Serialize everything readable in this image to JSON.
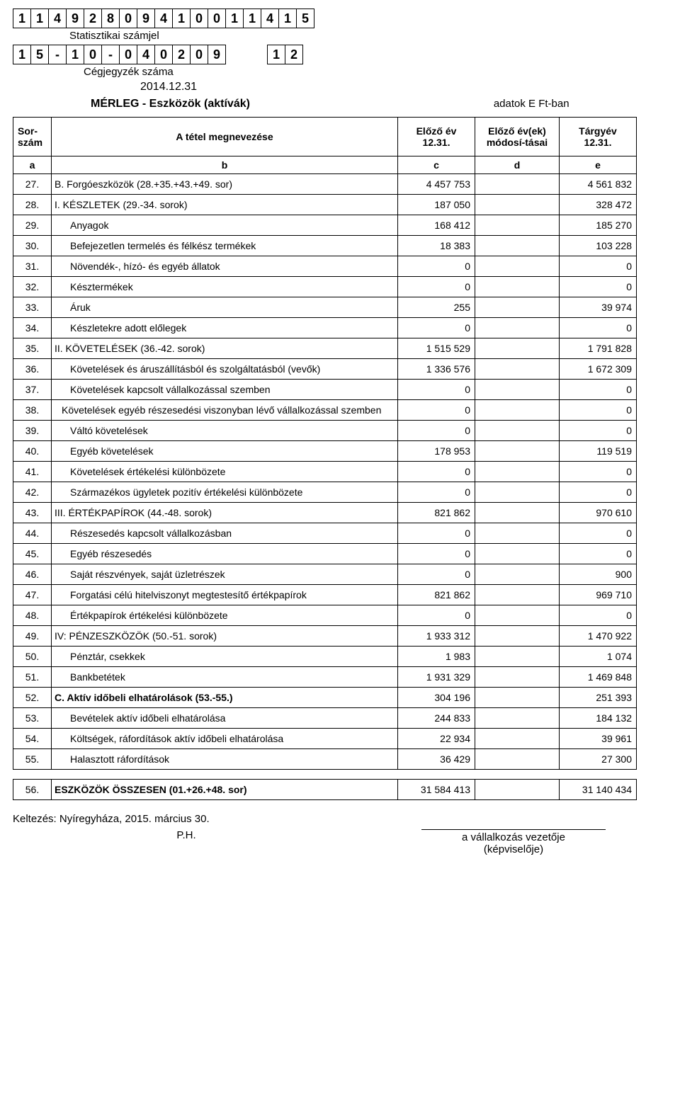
{
  "stat_code": [
    "1",
    "1",
    "4",
    "9",
    "2",
    "8",
    "0",
    "9",
    "4",
    "1",
    "0",
    "0",
    "1",
    "1",
    "4",
    "1",
    "5"
  ],
  "stat_label": "Statisztikai számjel",
  "reg_code_left": [
    "1",
    "5",
    "-",
    "1",
    "0",
    "-",
    "0",
    "4",
    "0",
    "2",
    "0",
    "9"
  ],
  "reg_code_right": [
    "1",
    "2"
  ],
  "reg_label": "Cégjegyzék száma",
  "report_date": "2014.12.31",
  "report_title": "MÉRLEG - Eszközök (aktívák)",
  "units_label": "adatok E Ft-ban",
  "head": {
    "sorszam": "Sor-\nszám",
    "megnev": "A tétel megnevezése",
    "elozo": "Előző év 12.31.",
    "modositas": "Előző év(ek) módosí-tásai",
    "targy": "Tárgyév 12.31."
  },
  "col_labels": {
    "a": "a",
    "b": "b",
    "c": "c",
    "d": "d",
    "e": "e"
  },
  "rows": [
    {
      "a": "27.",
      "b": "B.  Forgóeszközök (28.+35.+43.+49. sor)",
      "c": "4 457 753",
      "d": "",
      "e": "4 561 832",
      "indent": 0
    },
    {
      "a": "28.",
      "b": "I.  KÉSZLETEK (29.-34. sorok)",
      "c": "187 050",
      "d": "",
      "e": "328 472",
      "indent": 0
    },
    {
      "a": "29.",
      "b": "Anyagok",
      "c": "168 412",
      "d": "",
      "e": "185 270",
      "indent": 2
    },
    {
      "a": "30.",
      "b": "Befejezetlen termelés és félkész termékek",
      "c": "18 383",
      "d": "",
      "e": "103 228",
      "indent": 2
    },
    {
      "a": "31.",
      "b": "Növendék-, hízó- és egyéb állatok",
      "c": "0",
      "d": "",
      "e": "0",
      "indent": 2
    },
    {
      "a": "32.",
      "b": "Késztermékek",
      "c": "0",
      "d": "",
      "e": "0",
      "indent": 2
    },
    {
      "a": "33.",
      "b": "Áruk",
      "c": "255",
      "d": "",
      "e": "39 974",
      "indent": 2
    },
    {
      "a": "34.",
      "b": "Készletekre adott előlegek",
      "c": "0",
      "d": "",
      "e": "0",
      "indent": 2
    },
    {
      "a": "35.",
      "b": "II. KÖVETELÉSEK (36.-42. sorok)",
      "c": "1 515 529",
      "d": "",
      "e": "1 791 828",
      "indent": 0
    },
    {
      "a": "36.",
      "b": "Követelések és áruszállításból és szolgáltatásból (vevők)",
      "c": "1 336 576",
      "d": "",
      "e": "1 672 309",
      "indent": 2
    },
    {
      "a": "37.",
      "b": "Követelések kapcsolt vállalkozással szemben",
      "c": "0",
      "d": "",
      "e": "0",
      "indent": 2
    },
    {
      "a": "38.",
      "b": "Követelések egyéb részesedési viszonyban lévő vállalkozással szemben",
      "c": "0",
      "d": "",
      "e": "0",
      "indent": 3
    },
    {
      "a": "39.",
      "b": "Váltó követelések",
      "c": "0",
      "d": "",
      "e": "0",
      "indent": 2
    },
    {
      "a": "40.",
      "b": "Egyéb követelések",
      "c": "178 953",
      "d": "",
      "e": "119 519",
      "indent": 2
    },
    {
      "a": "41.",
      "b": "Követelések értékelési különbözete",
      "c": "0",
      "d": "",
      "e": "0",
      "indent": 2
    },
    {
      "a": "42.",
      "b": "Származékos ügyletek pozitív értékelési különbözete",
      "c": "0",
      "d": "",
      "e": "0",
      "indent": 2
    },
    {
      "a": "43.",
      "b": "III. ÉRTÉKPAPÍROK (44.-48. sorok)",
      "c": "821 862",
      "d": "",
      "e": "970 610",
      "indent": 0
    },
    {
      "a": "44.",
      "b": "Részesedés kapcsolt vállalkozásban",
      "c": "0",
      "d": "",
      "e": "0",
      "indent": 2
    },
    {
      "a": "45.",
      "b": "Egyéb részesedés",
      "c": "0",
      "d": "",
      "e": "0",
      "indent": 2
    },
    {
      "a": "46.",
      "b": "Saját részvények, saját üzletrészek",
      "c": "0",
      "d": "",
      "e": "900",
      "indent": 2
    },
    {
      "a": "47.",
      "b": "Forgatási célú hitelviszonyt megtestesítő értékpapírok",
      "c": "821 862",
      "d": "",
      "e": "969 710",
      "indent": 2
    },
    {
      "a": "48.",
      "b": "Értékpapírok értékelési különbözete",
      "c": "0",
      "d": "",
      "e": "0",
      "indent": 2
    },
    {
      "a": "49.",
      "b": "IV: PÉNZESZKÖZÖK (50.-51. sorok)",
      "c": "1 933 312",
      "d": "",
      "e": "1 470 922",
      "indent": 0
    },
    {
      "a": "50.",
      "b": "Pénztár, csekkek",
      "c": "1 983",
      "d": "",
      "e": "1 074",
      "indent": 2
    },
    {
      "a": "51.",
      "b": "Bankbetétek",
      "c": "1 931 329",
      "d": "",
      "e": "1 469 848",
      "indent": 2
    },
    {
      "a": "52.",
      "b": "C. Aktív időbeli elhatárolások (53.-55.)",
      "c": "304 196",
      "d": "",
      "e": "251 393",
      "indent": 0,
      "bold": true
    },
    {
      "a": "53.",
      "b": "Bevételek aktív időbeli elhatárolása",
      "c": "244 833",
      "d": "",
      "e": "184 132",
      "indent": 2
    },
    {
      "a": "54.",
      "b": "Költségek, ráfordítások aktív időbeli elhatárolása",
      "c": "22 934",
      "d": "",
      "e": "39 961",
      "indent": 2
    },
    {
      "a": "55.",
      "b": "Halasztott ráfordítások",
      "c": "36 429",
      "d": "",
      "e": "27 300",
      "indent": 2
    }
  ],
  "total": {
    "a": "56.",
    "b": "ESZKÖZÖK ÖSSZESEN (01.+26.+48. sor)",
    "c": "31 584 413",
    "d": "",
    "e": "31 140 434"
  },
  "footer_date": "Keltezés:  Nyíregyháza, 2015. március 30.",
  "ph": "P.H.",
  "sig1": "a vállalkozás vezetője",
  "sig2": "(képviselője)"
}
